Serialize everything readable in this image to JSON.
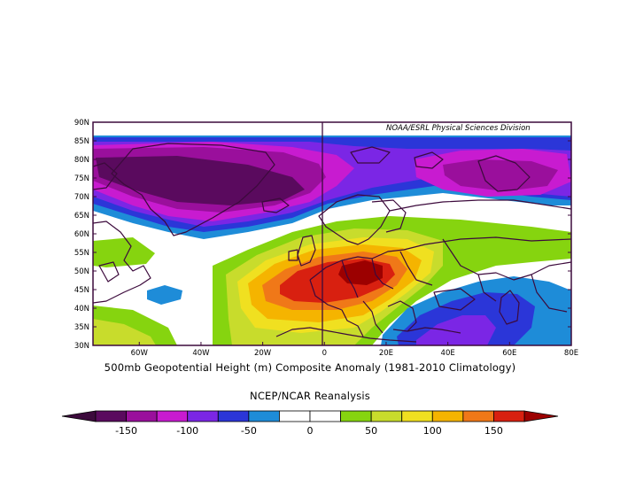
{
  "map": {
    "credit": "NOAA/ESRL Physical Sciences Division",
    "title": "500mb Geopotential Height (m) Composite Anomaly (1981-2010 Climatology)",
    "subtitle": "NCEP/NCAR Reanalysis",
    "lat_labels": [
      "90N",
      "85N",
      "80N",
      "75N",
      "70N",
      "65N",
      "60N",
      "55N",
      "50N",
      "45N",
      "40N",
      "35N",
      "30N"
    ],
    "lon_labels": [
      "60W",
      "40W",
      "20W",
      "0",
      "20E",
      "40E",
      "60E",
      "80E"
    ],
    "lat_range": [
      30,
      90
    ],
    "lon_range": [
      -75,
      80
    ]
  },
  "colorbar": {
    "labels": [
      "-150",
      "-100",
      "-50",
      "0",
      "50",
      "100",
      "150"
    ],
    "colors": [
      "#5a0a5e",
      "#9a0f9c",
      "#c81bd0",
      "#7b26e5",
      "#2b36d8",
      "#1e8cd8",
      "#ffffff",
      "#ffffff",
      "#86d40f",
      "#c8dc2c",
      "#f0e020",
      "#f5b400",
      "#f07818",
      "#d82010"
    ],
    "min_color": "#3c0a3c",
    "max_color": "#9c0000"
  },
  "colors": {
    "coastline": "#3c0a3c",
    "frame": "#3c0a3c"
  }
}
